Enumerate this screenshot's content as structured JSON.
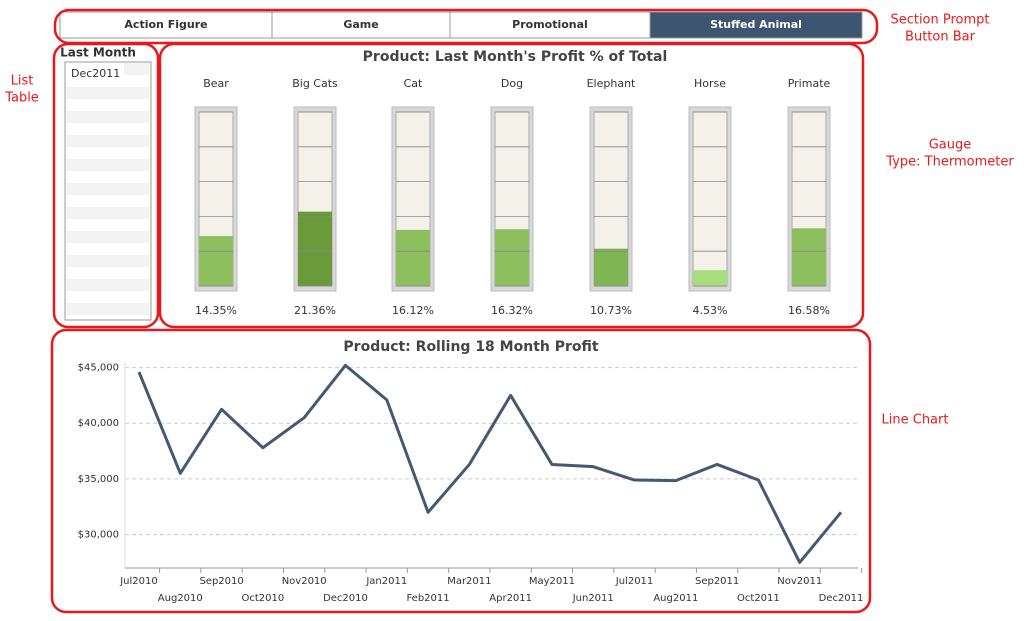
{
  "button_bar": {
    "buttons": [
      "Action Figure",
      "Game",
      "Promotional",
      "Stuffed Animal"
    ],
    "selected": 3
  },
  "list_table": {
    "header": "Last Month",
    "rows": [
      "Dec2011"
    ]
  },
  "chart_data": [
    {
      "type": "gauge",
      "title": "Product: Last Month's Profit % of Total",
      "categories": [
        "Bear",
        "Big Cats",
        "Cat",
        "Dog",
        "Elephant",
        "Horse",
        "Primate"
      ],
      "values": [
        14.35,
        21.36,
        16.12,
        16.32,
        10.73,
        4.53,
        16.58
      ],
      "value_labels": [
        "14.35%",
        "21.36%",
        "16.12%",
        "16.32%",
        "10.73%",
        "4.53%",
        "16.58%"
      ],
      "colors": [
        "#8dbf5f",
        "#6a9a3a",
        "#8dbf5f",
        "#8dbf5f",
        "#80b553",
        "#a9dc7c",
        "#8dbf5f"
      ],
      "ylim": [
        0,
        50
      ],
      "yticks": [
        0,
        10,
        20,
        30,
        40,
        50
      ]
    },
    {
      "type": "line",
      "title": "Product: Rolling 18 Month Profit",
      "categories": [
        "Jul2010",
        "Aug2010",
        "Sep2010",
        "Oct2010",
        "Nov2010",
        "Dec2010",
        "Jan2011",
        "Feb2011",
        "Mar2011",
        "Apr2011",
        "May2011",
        "Jun2011",
        "Jul2011",
        "Aug2011",
        "Sep2011",
        "Oct2011",
        "Nov2011",
        "Dec2011"
      ],
      "values": [
        44600,
        35500,
        41250,
        37800,
        40500,
        45200,
        42100,
        32000,
        36300,
        42500,
        36300,
        36100,
        34900,
        34850,
        36300,
        34900,
        27500,
        32000
      ],
      "color": "#435a72",
      "ylim": [
        27000,
        45500
      ],
      "yticks": [
        {
          "value": 30000,
          "label": "$30,000"
        },
        {
          "value": 35000,
          "label": "$35,000"
        },
        {
          "value": 40000,
          "label": "$40,000"
        },
        {
          "value": 45000,
          "label": "$45,000"
        }
      ],
      "grid": true
    }
  ],
  "annotations": [
    {
      "lines": [
        "Section Prompt",
        "Button Bar"
      ]
    },
    {
      "lines": [
        "List",
        "Table"
      ]
    },
    {
      "lines": [
        "Gauge",
        "Type: Thermometer"
      ]
    },
    {
      "lines": [
        "Line Chart"
      ]
    }
  ]
}
